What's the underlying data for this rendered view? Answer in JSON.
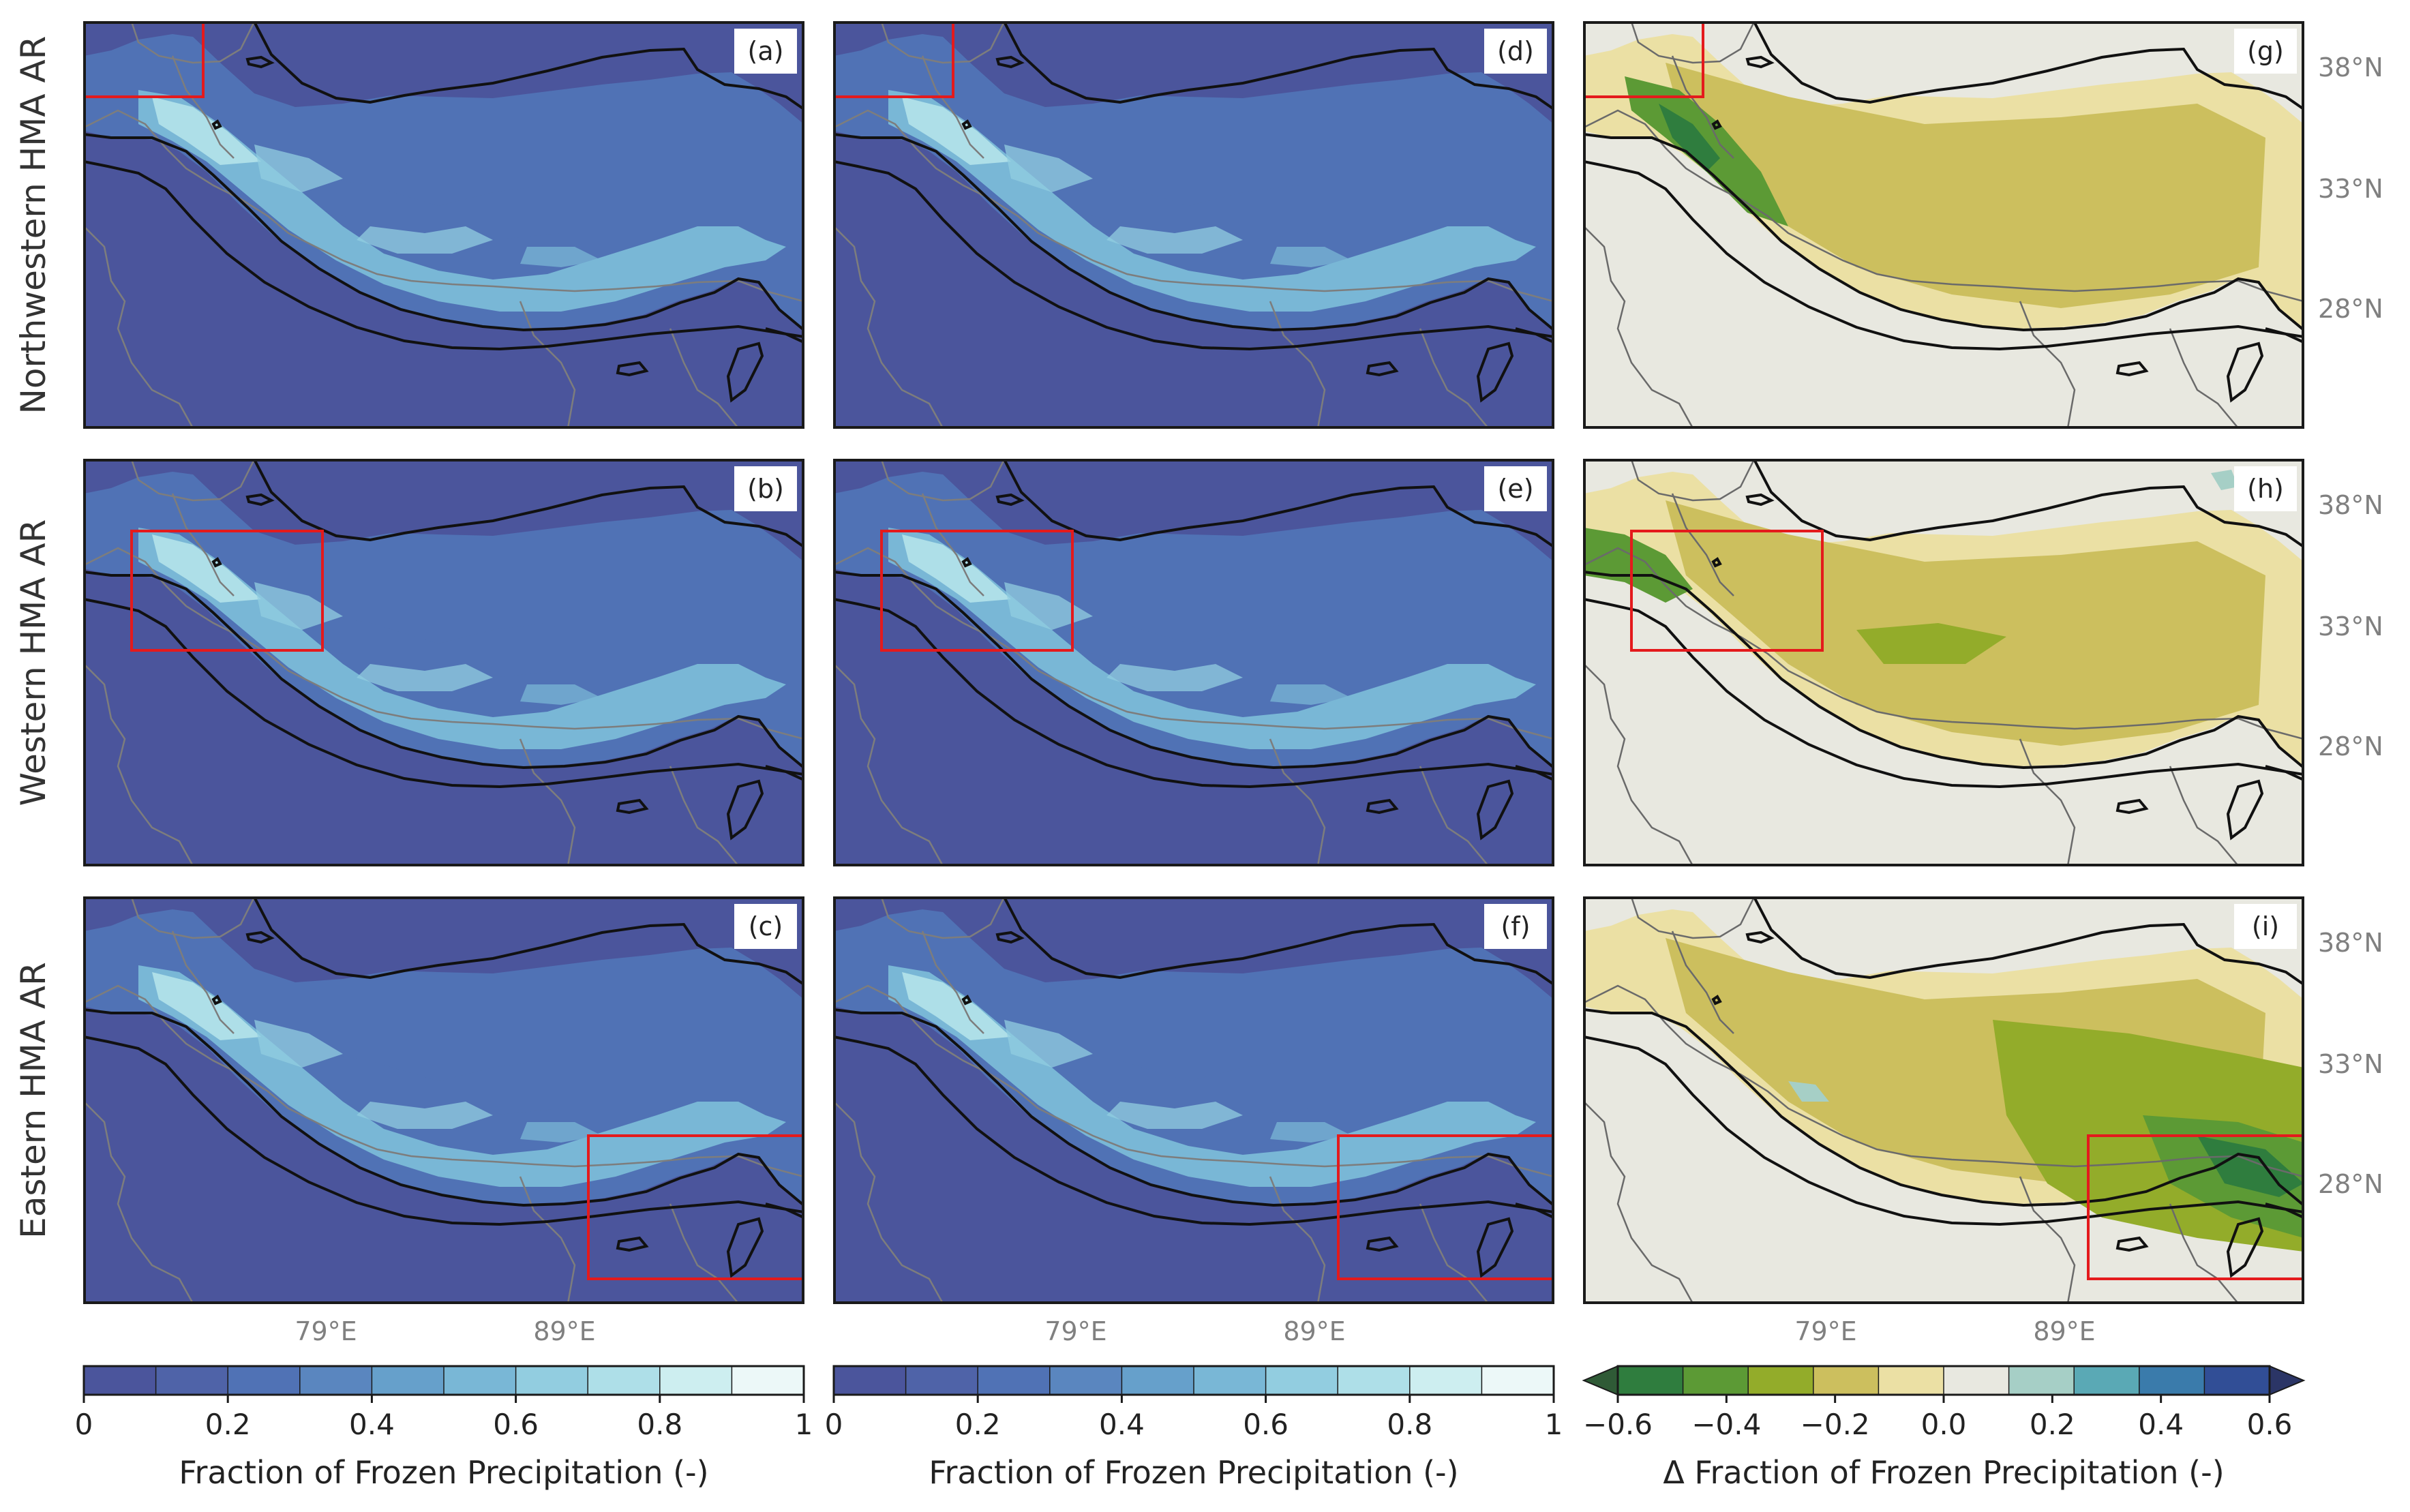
{
  "figure": {
    "rows": [
      {
        "label": "Northwestern HMA AR"
      },
      {
        "label": "Western HMA AR"
      },
      {
        "label": "Eastern HMA AR"
      }
    ],
    "panels": [
      {
        "tag": "(a)",
        "kind": "fraction",
        "row": 0,
        "col": 0
      },
      {
        "tag": "(d)",
        "kind": "fraction",
        "row": 0,
        "col": 1
      },
      {
        "tag": "(g)",
        "kind": "delta",
        "row": 0,
        "col": 2
      },
      {
        "tag": "(b)",
        "kind": "fraction",
        "row": 1,
        "col": 0
      },
      {
        "tag": "(e)",
        "kind": "fraction",
        "row": 1,
        "col": 1
      },
      {
        "tag": "(h)",
        "kind": "delta",
        "row": 1,
        "col": 2
      },
      {
        "tag": "(c)",
        "kind": "fraction",
        "row": 2,
        "col": 0
      },
      {
        "tag": "(f)",
        "kind": "fraction",
        "row": 2,
        "col": 1
      },
      {
        "tag": "(i)",
        "kind": "delta",
        "row": 2,
        "col": 2
      }
    ],
    "lon_ticks": [
      "79°E",
      "89°E"
    ],
    "lat_ticks": [
      "38°N",
      "33°N",
      "28°N"
    ]
  },
  "colorbars": [
    {
      "label": "Fraction of Frozen Precipitation (-)",
      "ticks": [
        "0",
        "0.2",
        "0.4",
        "0.6",
        "0.8",
        "1"
      ],
      "colors": [
        "#4b559c",
        "#4f63a8",
        "#5072b5",
        "#5a86bf",
        "#66a0cb",
        "#79b7d6",
        "#92cde0",
        "#aedfe8",
        "#cdeef0",
        "#ecf8f8"
      ]
    },
    {
      "label": "Fraction of Frozen Precipitation (-)",
      "ticks": [
        "0",
        "0.2",
        "0.4",
        "0.6",
        "0.8",
        "1"
      ],
      "colors": [
        "#4b559c",
        "#4f63a8",
        "#5072b5",
        "#5a86bf",
        "#66a0cb",
        "#79b7d6",
        "#92cde0",
        "#aedfe8",
        "#cdeef0",
        "#ecf8f8"
      ]
    },
    {
      "label": "Δ Fraction of Frozen Precipitation (-)",
      "ticks": [
        "−0.6",
        "−0.4",
        "−0.2",
        "0.0",
        "0.2",
        "0.4",
        "0.6"
      ],
      "colors": [
        "#2f5a36",
        "#2f7d3e",
        "#5c9a35",
        "#93ac2a",
        "#ccbf5e",
        "#ebe0a4",
        "#e8e8e0",
        "#a6cfc6",
        "#5aa9b5",
        "#3a7bab",
        "#314e96",
        "#2b3566"
      ]
    }
  ],
  "chart_data": {
    "type": "heatmap",
    "subplots": [
      {
        "tag": "(a)",
        "row_label": "Northwestern HMA AR",
        "colorbar": "Fraction of Frozen Precipitation (-)",
        "range": [
          0,
          1
        ]
      },
      {
        "tag": "(b)",
        "row_label": "Western HMA AR",
        "colorbar": "Fraction of Frozen Precipitation (-)",
        "range": [
          0,
          1
        ]
      },
      {
        "tag": "(c)",
        "row_label": "Eastern HMA AR",
        "colorbar": "Fraction of Frozen Precipitation (-)",
        "range": [
          0,
          1
        ]
      },
      {
        "tag": "(d)",
        "row_label": "Northwestern HMA AR",
        "colorbar": "Fraction of Frozen Precipitation (-)",
        "range": [
          0,
          1
        ]
      },
      {
        "tag": "(e)",
        "row_label": "Western HMA AR",
        "colorbar": "Fraction of Frozen Precipitation (-)",
        "range": [
          0,
          1
        ]
      },
      {
        "tag": "(f)",
        "row_label": "Eastern HMA AR",
        "colorbar": "Fraction of Frozen Precipitation (-)",
        "range": [
          0,
          1
        ]
      },
      {
        "tag": "(g)",
        "row_label": "Northwestern HMA AR",
        "colorbar": "Δ Fraction of Frozen Precipitation (-)",
        "range": [
          -0.6,
          0.6
        ]
      },
      {
        "tag": "(h)",
        "row_label": "Western HMA AR",
        "colorbar": "Δ Fraction of Frozen Precipitation (-)",
        "range": [
          -0.6,
          0.6
        ]
      },
      {
        "tag": "(i)",
        "row_label": "Eastern HMA AR",
        "colorbar": "Δ Fraction of Frozen Precipitation (-)",
        "range": [
          -0.6,
          0.6
        ]
      }
    ],
    "x_ticks": [
      "79°E",
      "89°E"
    ],
    "y_ticks": [
      "38°N",
      "33°N",
      "28°N"
    ]
  }
}
